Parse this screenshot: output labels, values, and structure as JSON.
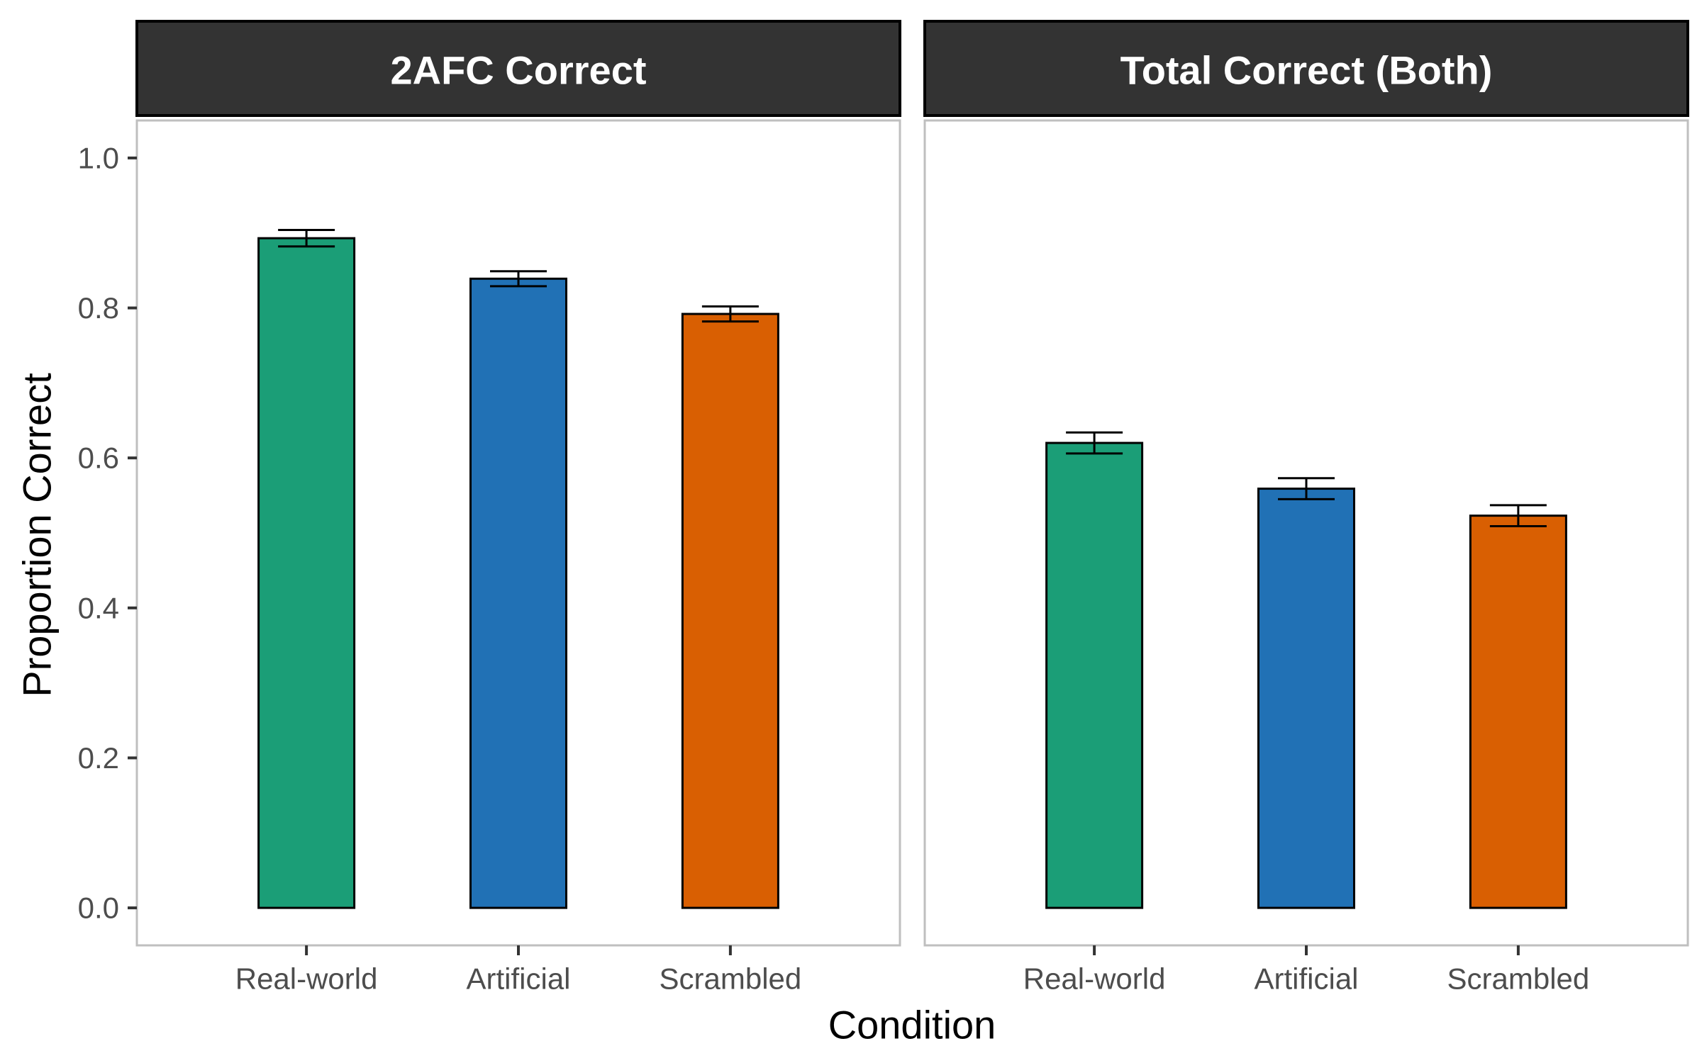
{
  "chart_data": {
    "type": "bar",
    "xlabel": "Condition",
    "ylabel": "Proportion Correct",
    "ylim": [
      -0.05,
      1.05
    ],
    "yticks": [
      "0.0",
      "0.2",
      "0.4",
      "0.6",
      "0.8",
      "1.0"
    ],
    "categories": [
      "Real-world",
      "Artificial",
      "Scrambled"
    ],
    "colors": [
      "#1b9e77",
      "#2171b5",
      "#d95f02"
    ],
    "grid": false,
    "legend": "none",
    "panels": [
      {
        "title": "2AFC Correct",
        "values": [
          0.893,
          0.839,
          0.792
        ],
        "error_low": [
          0.882,
          0.829,
          0.782
        ],
        "error_high": [
          0.904,
          0.849,
          0.802
        ]
      },
      {
        "title": "Total Correct (Both)",
        "values": [
          0.62,
          0.559,
          0.523
        ],
        "error_low": [
          0.606,
          0.545,
          0.509
        ],
        "error_high": [
          0.634,
          0.573,
          0.537
        ]
      }
    ]
  }
}
